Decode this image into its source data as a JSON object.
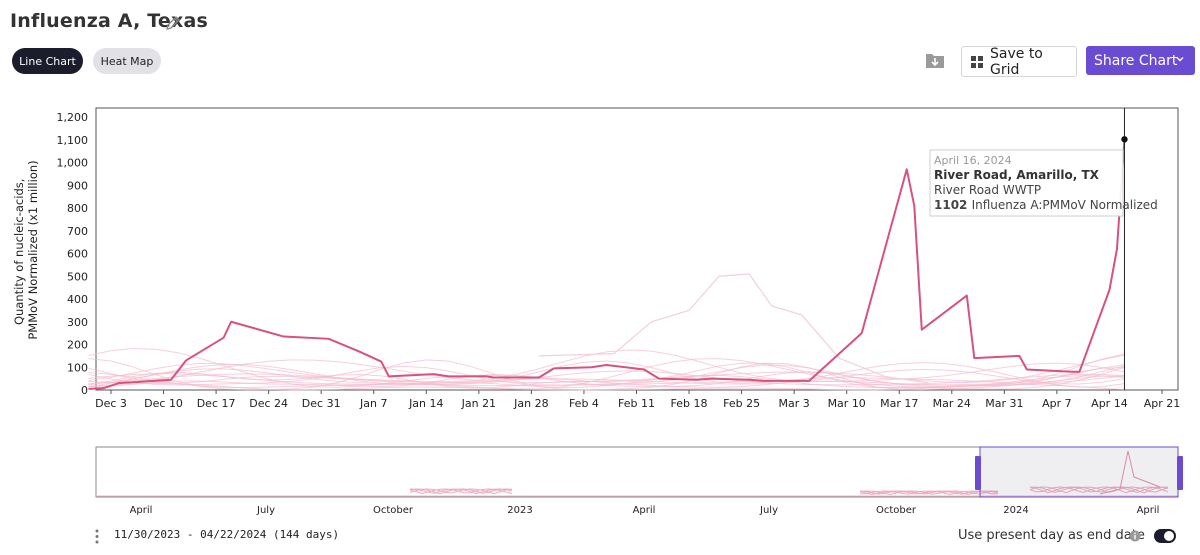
{
  "header": {
    "title": "Influenza A, Texas",
    "tabs": [
      {
        "label": "Line Chart",
        "active": true
      },
      {
        "label": "Heat Map",
        "active": false
      }
    ],
    "save_label": "Save to Grid",
    "share_label": "Share Chart"
  },
  "colors": {
    "accent": "#6a4cd3",
    "highlight_line": "#d6537c",
    "background_line": "#f4c5d3",
    "dark": "#1b1d2c"
  },
  "icons": [
    "edit-icon",
    "download-icon",
    "grid-icon",
    "chevron-down-icon",
    "info-icon",
    "kebab-icon"
  ],
  "chart_data": {
    "type": "line",
    "ylabel": "Quantity of nucleic-acids, PMMoV Normalized (x1 million)",
    "ylim": [
      0,
      1200
    ],
    "y_ticks": [
      "0",
      "100",
      "200",
      "300",
      "400",
      "500",
      "600",
      "700",
      "800",
      "900",
      "1,000",
      "1,100",
      "1,200"
    ],
    "x_ticks": [
      "Dec 3",
      "Dec 10",
      "Dec 17",
      "Dec 24",
      "Dec 31",
      "Jan 7",
      "Jan 14",
      "Jan 21",
      "Jan 28",
      "Feb 4",
      "Feb 11",
      "Feb 18",
      "Feb 25",
      "Mar 3",
      "Mar 10",
      "Mar 17",
      "Mar 24",
      "Mar 31",
      "Apr 7",
      "Apr 14",
      "Apr 21"
    ],
    "grid": false,
    "highlighted_series": {
      "name": "River Road, Amarillo, TX",
      "x": [
        "2023-11-30",
        "2023-12-02",
        "2023-12-04",
        "2023-12-11",
        "2023-12-13",
        "2023-12-18",
        "2023-12-19",
        "2023-12-26",
        "2024-01-01",
        "2024-01-05",
        "2024-01-08",
        "2024-01-09",
        "2024-01-15",
        "2024-01-17",
        "2024-01-22",
        "2024-01-23",
        "2024-01-29",
        "2024-01-31",
        "2024-02-05",
        "2024-02-07",
        "2024-02-12",
        "2024-02-14",
        "2024-02-19",
        "2024-02-21",
        "2024-02-26",
        "2024-02-28",
        "2024-03-04",
        "2024-03-05",
        "2024-03-11",
        "2024-03-12",
        "2024-03-18",
        "2024-03-19",
        "2024-03-20",
        "2024-03-26",
        "2024-03-27",
        "2024-04-02",
        "2024-04-03",
        "2024-04-09",
        "2024-04-10",
        "2024-04-14",
        "2024-04-15",
        "2024-04-16"
      ],
      "values": [
        5,
        8,
        30,
        45,
        130,
        230,
        300,
        235,
        225,
        170,
        125,
        60,
        70,
        60,
        60,
        55,
        55,
        95,
        100,
        110,
        90,
        50,
        45,
        50,
        45,
        40,
        40,
        40,
        220,
        250,
        970,
        810,
        265,
        415,
        140,
        150,
        90,
        80,
        80,
        440,
        620,
        1102
      ]
    },
    "other_series_values_range": [
      0,
      510
    ],
    "tooltip": {
      "date": "April 16, 2024",
      "site": "River Road, Amarillo, TX",
      "plant": "River Road WWTP",
      "value": "1102",
      "metric": "Influenza A:PMMoV Normalized"
    },
    "navigator": {
      "x_ticks": [
        "April",
        "July",
        "October",
        "2023",
        "April",
        "July",
        "October",
        "2024",
        "April"
      ]
    }
  },
  "footer": {
    "range_text": "11/30/2023 - 04/22/2024 (144 days)",
    "present_day_label": "Use present day as end date",
    "present_day_on": true
  }
}
